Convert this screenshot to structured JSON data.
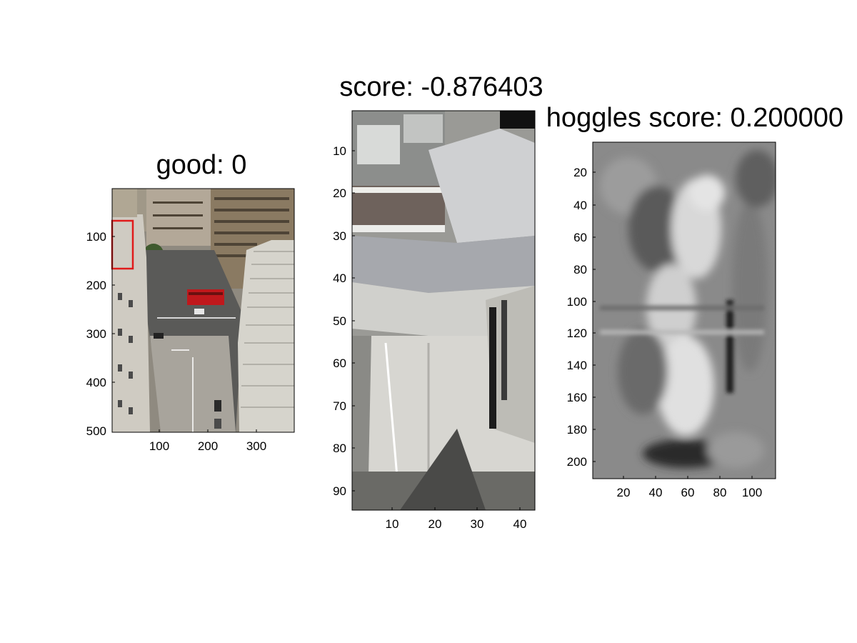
{
  "figure": {
    "panel1": {
      "title": "good: 0",
      "image": "aerial-city-street-photo",
      "highlight_color": "#e01b1b",
      "x_ticks": [
        "100",
        "200",
        "300"
      ],
      "y_ticks": [
        "100",
        "200",
        "300",
        "400",
        "500"
      ]
    },
    "panel2": {
      "title": "score: -0.876403",
      "image": "grayscale-building-corner-crop",
      "x_ticks": [
        "10",
        "20",
        "30",
        "40"
      ],
      "y_ticks": [
        "10",
        "20",
        "30",
        "40",
        "50",
        "60",
        "70",
        "80",
        "90"
      ]
    },
    "panel3": {
      "title": "hoggles score: 0.200000",
      "image": "hog-inverse-grayscale",
      "x_ticks": [
        "20",
        "40",
        "60",
        "80",
        "100"
      ],
      "y_ticks": [
        "20",
        "40",
        "60",
        "80",
        "100",
        "120",
        "140",
        "160",
        "180",
        "200"
      ]
    }
  }
}
